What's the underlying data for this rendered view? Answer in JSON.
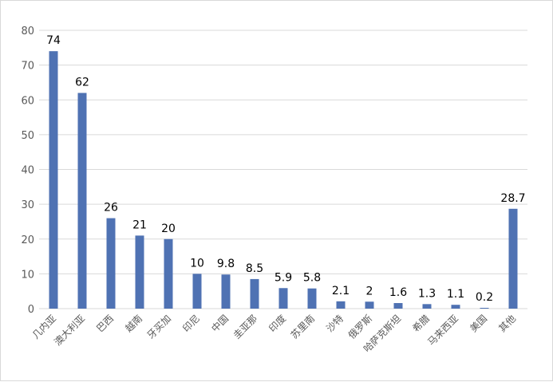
{
  "chart_data": {
    "type": "bar",
    "categories": [
      "几内亚",
      "澳大利亚",
      "巴西",
      "越南",
      "牙买加",
      "印尼",
      "中国",
      "圭亚那",
      "印度",
      "苏里南",
      "沙特",
      "俄罗斯",
      "哈萨克斯坦",
      "希腊",
      "马来西亚",
      "美国",
      "其他"
    ],
    "values": [
      74,
      62,
      26,
      21,
      20,
      10,
      9.8,
      8.5,
      5.9,
      5.8,
      2.1,
      2,
      1.6,
      1.3,
      1.1,
      0.2,
      28.7
    ],
    "data_labels": [
      "74",
      "62",
      "26",
      "21",
      "20",
      "10",
      "9.8",
      "8.5",
      "5.9",
      "5.8",
      "2.1",
      "2",
      "1.6",
      "1.3",
      "1.1",
      "0.2",
      "28.7"
    ],
    "ylim": [
      0,
      80
    ],
    "yticks": [
      0,
      10,
      20,
      30,
      40,
      50,
      60,
      70,
      80
    ],
    "ytick_labels": [
      "0",
      "10",
      "20",
      "30",
      "40",
      "50",
      "60",
      "70",
      "80"
    ],
    "grid": true,
    "legend": "none",
    "bar_color": "#4f72b3",
    "grid_color": "#d9d9d9"
  }
}
